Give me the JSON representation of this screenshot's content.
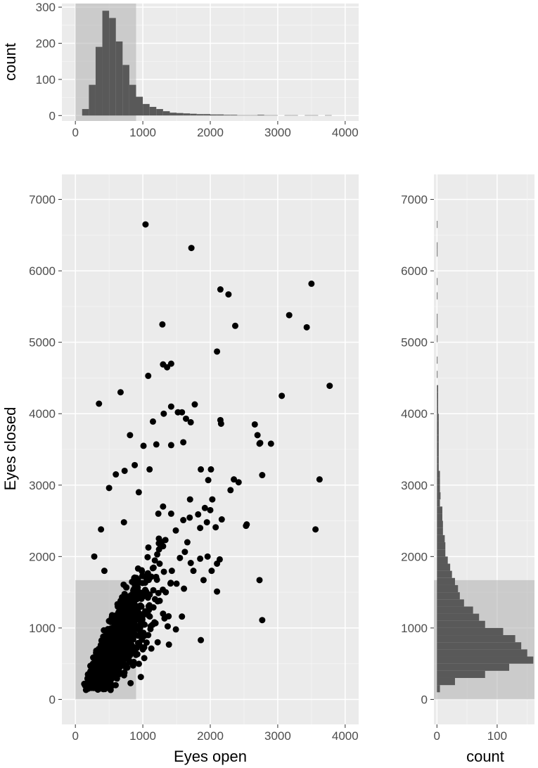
{
  "colors": {
    "panel_bg": "#ebebeb",
    "grid_major": "#ffffff",
    "grid_minor": "#f5f5f5",
    "points": "#000000",
    "bars": "#595959",
    "highlight_box": "#b0b0b0",
    "tick_label": "#4d4d4d",
    "axis_title": "#000000"
  },
  "chart_data": [
    {
      "id": "top-histogram",
      "type": "bar",
      "description_of_axes": "x = Eyes open, y = count",
      "xlabel": "",
      "ylabel": "count",
      "xlim": [
        -200,
        4200
      ],
      "ylim": [
        -15,
        310
      ],
      "x_ticks": [
        0,
        1000,
        2000,
        3000,
        4000
      ],
      "x_tick_labels": [
        "0",
        "1000",
        "2000",
        "3000",
        "4000"
      ],
      "y_ticks": [
        0,
        100,
        200,
        300
      ],
      "y_tick_labels": [
        "0",
        "100",
        "200",
        "300"
      ],
      "grid": true,
      "highlight_range": {
        "x": [
          0,
          900
        ]
      },
      "bin_width": 100,
      "bins_start": [
        100,
        200,
        300,
        400,
        500,
        600,
        700,
        800,
        900,
        1000,
        1100,
        1200,
        1300,
        1400,
        1500,
        1600,
        1700,
        1800,
        1900,
        2000,
        2100,
        2200,
        2300,
        2400,
        2500,
        2600,
        2700,
        2800,
        2900,
        3000,
        3100,
        3200,
        3300,
        3400,
        3500,
        3600,
        3700
      ],
      "values": [
        18,
        85,
        190,
        290,
        270,
        205,
        140,
        85,
        52,
        32,
        24,
        18,
        12,
        8,
        7,
        6,
        5,
        4,
        4,
        3,
        3,
        2,
        2,
        1,
        1,
        1,
        2,
        1,
        1,
        0,
        1,
        1,
        0,
        1,
        1,
        0,
        1
      ]
    },
    {
      "id": "scatter",
      "type": "scatter",
      "xlabel": "Eyes open",
      "ylabel": "Eyes closed",
      "xlim": [
        -200,
        4200
      ],
      "ylim": [
        -350,
        7350
      ],
      "x_ticks": [
        0,
        1000,
        2000,
        3000,
        4000
      ],
      "x_tick_labels": [
        "0",
        "1000",
        "2000",
        "3000",
        "4000"
      ],
      "y_ticks": [
        0,
        1000,
        2000,
        3000,
        4000,
        5000,
        6000,
        7000
      ],
      "y_tick_labels": [
        "0",
        "1000",
        "2000",
        "3000",
        "4000",
        "5000",
        "6000",
        "7000"
      ],
      "grid": true,
      "highlight_range": {
        "x": [
          0,
          900
        ],
        "y": [
          0,
          1670
        ]
      },
      "points": [
        [
          1040,
          6650
        ],
        [
          1720,
          6320
        ],
        [
          3500,
          5820
        ],
        [
          2150,
          5740
        ],
        [
          2270,
          5670
        ],
        [
          3170,
          5380
        ],
        [
          1290,
          5250
        ],
        [
          2370,
          5230
        ],
        [
          3430,
          5210
        ],
        [
          2100,
          4870
        ],
        [
          1300,
          4690
        ],
        [
          1420,
          4700
        ],
        [
          1360,
          4650
        ],
        [
          1080,
          4530
        ],
        [
          3770,
          4390
        ],
        [
          670,
          4300
        ],
        [
          3060,
          4250
        ],
        [
          350,
          4140
        ],
        [
          1420,
          4100
        ],
        [
          1770,
          4130
        ],
        [
          1520,
          4020
        ],
        [
          1580,
          4020
        ],
        [
          1310,
          4000
        ],
        [
          1640,
          3930
        ],
        [
          1710,
          3880
        ],
        [
          1150,
          3890
        ],
        [
          2150,
          3910
        ],
        [
          2160,
          3860
        ],
        [
          2660,
          3850
        ],
        [
          2700,
          3700
        ],
        [
          1200,
          3570
        ],
        [
          1420,
          3560
        ],
        [
          2740,
          3590
        ],
        [
          2900,
          3580
        ],
        [
          2730,
          3580
        ],
        [
          1010,
          3550
        ],
        [
          1600,
          3600
        ],
        [
          810,
          3700
        ],
        [
          1860,
          3220
        ],
        [
          2010,
          3220
        ],
        [
          2350,
          3080
        ],
        [
          2420,
          3040
        ],
        [
          2770,
          3140
        ],
        [
          3620,
          3080
        ],
        [
          1970,
          3070
        ],
        [
          500,
          2960
        ],
        [
          600,
          3150
        ],
        [
          730,
          3200
        ],
        [
          880,
          3280
        ],
        [
          1100,
          3220
        ],
        [
          2030,
          2800
        ],
        [
          1700,
          2800
        ],
        [
          2300,
          2930
        ],
        [
          1920,
          2680
        ],
        [
          2000,
          2650
        ],
        [
          1820,
          2590
        ],
        [
          1950,
          2480
        ],
        [
          2170,
          2520
        ],
        [
          2540,
          2450
        ],
        [
          2530,
          2430
        ],
        [
          1850,
          2400
        ],
        [
          1600,
          2510
        ],
        [
          3560,
          2380
        ],
        [
          1420,
          2600
        ],
        [
          1300,
          2700
        ],
        [
          2080,
          2410
        ],
        [
          1850,
          1970
        ],
        [
          1960,
          2000
        ],
        [
          2100,
          1900
        ],
        [
          2140,
          1960
        ],
        [
          2020,
          1800
        ],
        [
          2100,
          1510
        ],
        [
          1900,
          1670
        ],
        [
          2730,
          1670
        ],
        [
          1610,
          1550
        ],
        [
          1500,
          1620
        ],
        [
          1340,
          1500
        ],
        [
          1250,
          1380
        ],
        [
          2770,
          1110
        ],
        [
          1580,
          1160
        ],
        [
          1490,
          980
        ],
        [
          1860,
          830
        ],
        [
          1220,
          800
        ],
        [
          960,
          1000
        ],
        [
          1080,
          900
        ],
        [
          1000,
          700
        ],
        [
          280,
          2000
        ],
        [
          430,
          1800
        ],
        [
          380,
          2380
        ],
        [
          720,
          2480
        ],
        [
          940,
          2900
        ],
        [
          1230,
          2600
        ],
        [
          1660,
          2200
        ],
        [
          1550,
          1980
        ],
        [
          1750,
          1800
        ],
        [
          1430,
          1800
        ],
        [
          1240,
          2100
        ],
        [
          1100,
          1700
        ],
        [
          980,
          1300
        ],
        [
          1300,
          1200
        ]
      ],
      "dense_cluster_note": "plus ~2000 overlapping points concentrated in x 100-900, y 150-1700"
    },
    {
      "id": "right-histogram",
      "type": "bar",
      "orientation": "horizontal",
      "xlabel": "count",
      "ylabel": "",
      "xlim": [
        -5,
        162
      ],
      "ylim": [
        -350,
        7350
      ],
      "x_ticks": [
        0,
        100
      ],
      "x_tick_labels": [
        "0",
        "100"
      ],
      "y_ticks": [
        0,
        1000,
        2000,
        3000,
        4000,
        5000,
        6000,
        7000
      ],
      "y_tick_labels": [
        "0",
        "1000",
        "2000",
        "3000",
        "4000",
        "5000",
        "6000",
        "7000"
      ],
      "grid": true,
      "highlight_range": {
        "y": [
          0,
          1670
        ]
      },
      "bin_width": 100,
      "bins_start": [
        100,
        200,
        300,
        400,
        500,
        600,
        700,
        800,
        900,
        1000,
        1100,
        1200,
        1300,
        1400,
        1500,
        1600,
        1700,
        1800,
        1900,
        2000,
        2100,
        2200,
        2300,
        2400,
        2500,
        2600,
        2700,
        2800,
        2900,
        3000,
        3100,
        3200,
        3300,
        3400,
        3500,
        3600,
        3700,
        3800,
        3900,
        4000,
        4100,
        4200,
        4300,
        4500,
        4700,
        5000,
        5200,
        5300,
        5600,
        5800,
        6200,
        6300,
        6600
      ],
      "values": [
        5,
        30,
        80,
        120,
        160,
        150,
        140,
        130,
        110,
        80,
        70,
        60,
        45,
        38,
        35,
        30,
        25,
        22,
        18,
        14,
        14,
        13,
        10,
        10,
        9,
        9,
        5,
        6,
        5,
        5,
        5,
        3,
        3,
        3,
        3,
        3,
        3,
        3,
        3,
        2,
        2,
        2,
        2,
        1,
        1,
        1,
        1,
        1,
        1,
        1,
        1,
        1,
        1
      ]
    }
  ]
}
